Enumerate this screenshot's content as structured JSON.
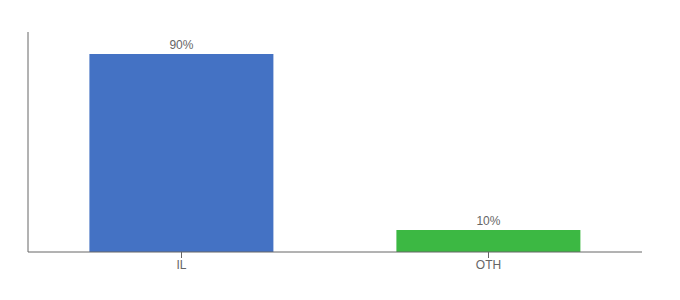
{
  "chart_data": {
    "type": "bar",
    "categories": [
      "IL",
      "OTH"
    ],
    "values": [
      90,
      10
    ],
    "value_labels": [
      "90%",
      "10%"
    ],
    "colors": [
      "#4472c4",
      "#3cb843"
    ],
    "ylim": [
      0,
      100
    ],
    "data_labels": true,
    "tick_labels": "x",
    "grid": false
  }
}
